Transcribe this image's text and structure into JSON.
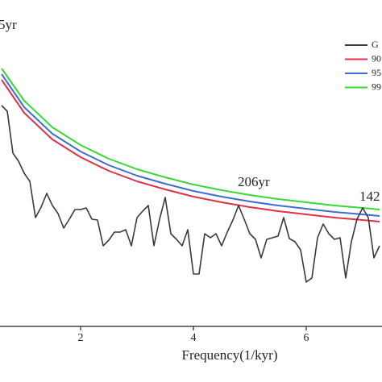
{
  "chart_data": {
    "type": "line",
    "x_label": "Frequency(1/kyr)",
    "annotations": [
      "5yr",
      "206yr",
      "142"
    ],
    "xlim": [
      0.571,
      7.343
    ],
    "xticks": [
      2,
      4,
      6
    ],
    "ylim": [
      0,
      405
    ],
    "legend": "upper right",
    "series": [
      {
        "name": "G",
        "color": "#3a3a3a",
        "x": [
          0.6,
          0.7,
          0.8,
          0.9,
          1.0,
          1.1,
          1.2,
          1.3,
          1.4,
          1.5,
          1.6,
          1.7,
          1.8,
          1.9,
          2.0,
          2.1,
          2.2,
          2.3,
          2.4,
          2.5,
          2.6,
          2.7,
          2.8,
          2.9,
          3.0,
          3.1,
          3.2,
          3.3,
          3.4,
          3.5,
          3.6,
          3.7,
          3.8,
          3.9,
          4.0,
          4.1,
          4.2,
          4.3,
          4.4,
          4.5,
          4.6,
          4.7,
          4.8,
          4.9,
          5.0,
          5.1,
          5.2,
          5.3,
          5.4,
          5.5,
          5.6,
          5.7,
          5.8,
          5.9,
          6.0,
          6.1,
          6.2,
          6.3,
          6.4,
          6.5,
          6.6,
          6.7,
          6.8,
          6.9,
          7.0,
          7.1,
          7.2,
          7.3
        ],
        "values": [
          274,
          267,
          215,
          205,
          190,
          180,
          135,
          148,
          165,
          150,
          140,
          122,
          133,
          145,
          145,
          147,
          133,
          132,
          100,
          107,
          117,
          117,
          120,
          100,
          135,
          143,
          150,
          100,
          133,
          160,
          115,
          108,
          100,
          120,
          65,
          65,
          115,
          110,
          115,
          100,
          117,
          132,
          150,
          133,
          115,
          108,
          85,
          108,
          110,
          112,
          135,
          109,
          105,
          95,
          55,
          60,
          110,
          127,
          115,
          108,
          110,
          60,
          105,
          133,
          147,
          135,
          85,
          100
        ]
      },
      {
        "name": "90",
        "color": "#e0304a",
        "x": [
          0.6,
          1,
          1.5,
          2,
          2.5,
          3,
          3.5,
          4,
          4.5,
          5,
          5.5,
          6,
          6.5,
          7,
          7.3
        ],
        "values": [
          306,
          265,
          232,
          210,
          193,
          180,
          170,
          161,
          154,
          148,
          143,
          139,
          135,
          132,
          130
        ]
      },
      {
        "name": "95",
        "color": "#3a6fd0",
        "x": [
          0.6,
          1,
          1.5,
          2,
          2.5,
          3,
          3.5,
          4,
          4.5,
          5,
          5.5,
          6,
          6.5,
          7,
          7.3
        ],
        "values": [
          313,
          272,
          239,
          217,
          200,
          187,
          177,
          168,
          161,
          155,
          150,
          146,
          142,
          139,
          137
        ]
      },
      {
        "name": "99",
        "color": "#38d838",
        "x": [
          0.6,
          1,
          1.5,
          2,
          2.5,
          3,
          3.5,
          4,
          4.5,
          5,
          5.5,
          6,
          6.5,
          7,
          7.3
        ],
        "values": [
          320,
          280,
          247,
          225,
          208,
          195,
          185,
          176,
          169,
          163,
          158,
          154,
          150,
          147,
          145
        ]
      }
    ]
  }
}
